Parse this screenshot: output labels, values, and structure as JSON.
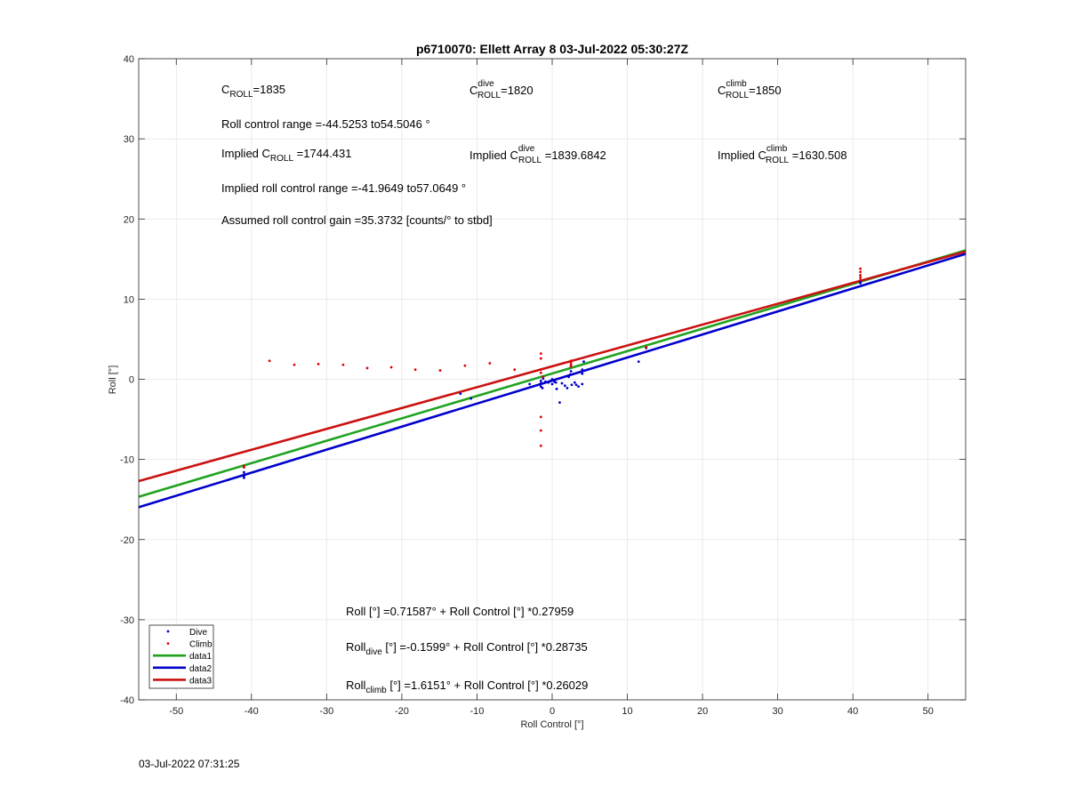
{
  "chart_data": {
    "type": "scatter",
    "title": "p6710070: Ellett Array 8 03-Jul-2022 05:30:27Z",
    "xlabel": "Roll Control [°]",
    "ylabel": "Roll [°]",
    "xlim": [
      -55,
      55
    ],
    "ylim": [
      -40,
      40
    ],
    "xticks": [
      -50,
      -40,
      -30,
      -20,
      -10,
      0,
      10,
      20,
      30,
      40,
      50
    ],
    "yticks": [
      -40,
      -30,
      -20,
      -10,
      0,
      10,
      20,
      30,
      40
    ],
    "grid": true,
    "legend_position": "bottom-left",
    "annotations": {
      "c_roll_base": "C",
      "c_roll_sub": "ROLL",
      "c_roll_val": "=1835",
      "c_dive_base": "C",
      "c_dive_sup": "dive",
      "c_dive_sub": "ROLL",
      "c_dive_val": "=1820",
      "c_climb_base": "C",
      "c_climb_sup": "climb",
      "c_climb_sub": "ROLL",
      "c_climb_val": "=1850",
      "roll_range": "Roll control range =-44.5253 to54.5046 °",
      "impl_base": "Implied C",
      "impl_sub": "ROLL",
      "impl_val": " =1744.431",
      "impl_dive_base": "Implied C",
      "impl_dive_sup": "dive",
      "impl_dive_sub": "ROLL",
      "impl_dive_val": " =1839.6842",
      "impl_climb_base": "Implied C",
      "impl_climb_sup": "climb",
      "impl_climb_sub": "ROLL",
      "impl_climb_val": " =1630.508",
      "impl_range": "Implied roll control range =-41.9649 to57.0649 °",
      "gain": "Assumed roll control gain =35.3732 [counts/° to stbd]",
      "fit_all": "Roll [°] =0.71587° + Roll Control [°] *0.27959",
      "fit_dive_base": "Roll",
      "fit_dive_sub": "dive",
      "fit_dive_rest": " [°] =-0.1599° + Roll Control [°] *0.28735",
      "fit_climb_base": "Roll",
      "fit_climb_sub": "climb",
      "fit_climb_rest": " [°] =1.6151° + Roll Control [°] *0.26029"
    },
    "series": [
      {
        "name": "Dive",
        "type": "scatter",
        "color": "#0000cc",
        "points": [
          [
            -41,
            -11.6
          ],
          [
            -41,
            -12.0
          ],
          [
            -41,
            -12.3
          ],
          [
            -41,
            -11.9
          ],
          [
            -41,
            -12.1
          ],
          [
            -12.2,
            -1.8
          ],
          [
            -10.8,
            -2.4
          ],
          [
            -3,
            -0.6
          ],
          [
            -1.5,
            -0.5
          ],
          [
            -1.5,
            -0.2
          ],
          [
            -1.5,
            -0.9
          ],
          [
            -1.3,
            -1.1
          ],
          [
            -1.2,
            0.1
          ],
          [
            -0.9,
            -0.3
          ],
          [
            -0.5,
            -0.4
          ],
          [
            -0.2,
            -0.2
          ],
          [
            0,
            -0.6
          ],
          [
            0,
            0
          ],
          [
            0.3,
            -0.3
          ],
          [
            0.5,
            -0.4
          ],
          [
            0.6,
            -1.2
          ],
          [
            1,
            -2.9
          ],
          [
            1.3,
            -0.5
          ],
          [
            1.7,
            -0.8
          ],
          [
            2,
            -1.1
          ],
          [
            2.2,
            0.3
          ],
          [
            2.4,
            0.6
          ],
          [
            2.5,
            1.0
          ],
          [
            2.6,
            -0.7
          ],
          [
            3,
            -0.4
          ],
          [
            3.2,
            -0.7
          ],
          [
            3.5,
            -0.9
          ],
          [
            4,
            -0.6
          ],
          [
            4,
            0.7
          ],
          [
            4,
            1.2
          ],
          [
            4.2,
            2.2
          ],
          [
            11.5,
            2.2
          ],
          [
            12.5,
            3.9
          ],
          [
            41,
            12.0
          ],
          [
            41,
            12.2
          ]
        ]
      },
      {
        "name": "Climb",
        "type": "scatter",
        "color": "#dd0000",
        "points": [
          [
            -41,
            -10.8
          ],
          [
            -41,
            -11.0
          ],
          [
            -37.6,
            2.3
          ],
          [
            -34.3,
            1.8
          ],
          [
            -31.1,
            1.9
          ],
          [
            -27.8,
            1.8
          ],
          [
            -24.6,
            1.4
          ],
          [
            -21.4,
            1.5
          ],
          [
            -18.2,
            1.2
          ],
          [
            -14.9,
            1.1
          ],
          [
            -11.6,
            1.7
          ],
          [
            -8.3,
            2.0
          ],
          [
            -5,
            1.2
          ],
          [
            -1.5,
            3.2
          ],
          [
            -1.5,
            2.6
          ],
          [
            -1.5,
            1.2
          ],
          [
            -1.5,
            0.8
          ],
          [
            -1.5,
            -4.7
          ],
          [
            -1.5,
            -6.4
          ],
          [
            -1.5,
            -8.3
          ],
          [
            -1.2,
            0.3
          ],
          [
            2.5,
            2.1
          ],
          [
            2.5,
            1.8
          ],
          [
            2.5,
            2.3
          ],
          [
            2.5,
            1.6
          ],
          [
            12.5,
            4.0
          ],
          [
            41,
            13.8
          ],
          [
            41,
            13.4
          ],
          [
            41,
            13.0
          ],
          [
            41,
            12.7
          ],
          [
            41,
            12.4
          ]
        ]
      },
      {
        "name": "data1",
        "type": "line",
        "color": "#1fa31f",
        "intercept": 0.71587,
        "slope": 0.27959
      },
      {
        "name": "data2",
        "type": "line",
        "color": "#0000cc",
        "intercept": -0.1599,
        "slope": 0.28735
      },
      {
        "name": "data3",
        "type": "line",
        "color": "#cc1111",
        "intercept": 1.6151,
        "slope": 0.26029
      }
    ]
  },
  "footer": {
    "timestamp": "03-Jul-2022 07:31:25"
  }
}
